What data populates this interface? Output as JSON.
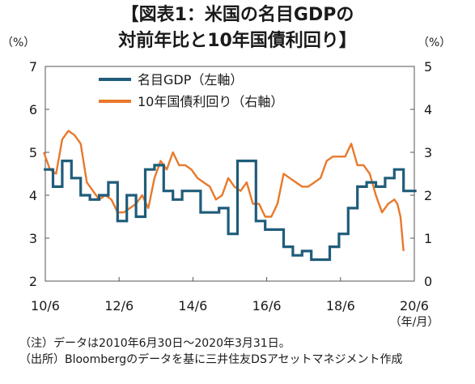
{
  "title_line1": "【図表1：米国の名目GDPの",
  "title_line2": "対前年比と10年国債利回り】",
  "unit_left": "（%）",
  "unit_right": "（%）",
  "note_line1": "（注）データは2010年6月30日～2020年3月31日。",
  "note_line2": "（出所）Bloombergのデータを基に三井住友DSアセットマネジメント作成",
  "colors": {
    "gdp": "#1f5c7a",
    "yield": "#e8792b",
    "axis": "#333333"
  },
  "chart_data": {
    "type": "line",
    "x_tick_labels": [
      "10/6",
      "12/6",
      "14/6",
      "16/6",
      "18/6",
      "20/6"
    ],
    "x_unit_label": "（年/月）",
    "x_range": [
      "2010-06",
      "2020-03"
    ],
    "left_axis": {
      "ylim": [
        2,
        7
      ],
      "ticks": [
        2,
        3,
        4,
        5,
        6,
        7
      ]
    },
    "right_axis": {
      "ylim": [
        0,
        5
      ],
      "ticks": [
        0,
        1,
        2,
        3,
        4,
        5
      ]
    },
    "legend_position": "top-left",
    "series": [
      {
        "name": "名目GDP（左軸）",
        "axis": "left",
        "step": true,
        "x": [
          "2010-06",
          "2010-09",
          "2010-12",
          "2011-03",
          "2011-06",
          "2011-09",
          "2011-12",
          "2012-03",
          "2012-06",
          "2012-09",
          "2012-12",
          "2013-03",
          "2013-06",
          "2013-09",
          "2013-12",
          "2014-03",
          "2014-06",
          "2014-09",
          "2014-12",
          "2015-03",
          "2015-06",
          "2015-09",
          "2015-12",
          "2016-03",
          "2016-06",
          "2016-09",
          "2016-12",
          "2017-03",
          "2017-06",
          "2017-09",
          "2017-12",
          "2018-03",
          "2018-06",
          "2018-09",
          "2018-12",
          "2019-03",
          "2019-06",
          "2019-09",
          "2019-12",
          "2020-03"
        ],
        "values": [
          4.6,
          4.2,
          4.8,
          4.4,
          4.0,
          3.9,
          4.0,
          4.3,
          3.4,
          4.0,
          3.5,
          4.6,
          4.7,
          4.1,
          3.9,
          4.1,
          4.1,
          3.6,
          3.6,
          3.7,
          3.1,
          4.8,
          4.8,
          3.4,
          3.2,
          3.2,
          2.8,
          2.6,
          2.7,
          2.5,
          2.5,
          2.8,
          3.1,
          3.7,
          4.2,
          4.3,
          4.2,
          4.4,
          4.6,
          4.1
        ]
      },
      {
        "name": "10年国債利回り（右軸）",
        "axis": "right",
        "x": [
          "2010-06",
          "2010-08",
          "2010-10",
          "2010-12",
          "2011-02",
          "2011-04",
          "2011-06",
          "2011-08",
          "2011-10",
          "2011-12",
          "2012-02",
          "2012-04",
          "2012-06",
          "2012-08",
          "2012-10",
          "2012-12",
          "2013-02",
          "2013-04",
          "2013-06",
          "2013-08",
          "2013-10",
          "2013-12",
          "2014-02",
          "2014-04",
          "2014-06",
          "2014-08",
          "2014-10",
          "2014-12",
          "2015-02",
          "2015-04",
          "2015-06",
          "2015-08",
          "2015-10",
          "2015-12",
          "2016-02",
          "2016-04",
          "2016-06",
          "2016-08",
          "2016-10",
          "2016-12",
          "2017-02",
          "2017-04",
          "2017-06",
          "2017-08",
          "2017-10",
          "2017-12",
          "2018-02",
          "2018-04",
          "2018-06",
          "2018-08",
          "2018-10",
          "2018-12",
          "2019-02",
          "2019-04",
          "2019-06",
          "2019-08",
          "2019-10",
          "2019-12",
          "2020-01",
          "2020-02",
          "2020-03"
        ],
        "values": [
          3.0,
          2.6,
          2.5,
          3.3,
          3.5,
          3.4,
          3.2,
          2.3,
          2.1,
          1.9,
          2.0,
          1.9,
          1.6,
          1.6,
          1.7,
          1.8,
          2.0,
          1.7,
          2.4,
          2.8,
          2.6,
          3.0,
          2.7,
          2.7,
          2.6,
          2.4,
          2.3,
          2.2,
          1.9,
          2.0,
          2.4,
          2.2,
          2.1,
          2.3,
          1.8,
          1.8,
          1.5,
          1.5,
          1.8,
          2.5,
          2.4,
          2.3,
          2.2,
          2.2,
          2.3,
          2.4,
          2.8,
          2.9,
          2.9,
          2.9,
          3.2,
          2.7,
          2.7,
          2.5,
          2.0,
          1.6,
          1.8,
          1.9,
          1.8,
          1.5,
          0.7
        ]
      }
    ]
  }
}
